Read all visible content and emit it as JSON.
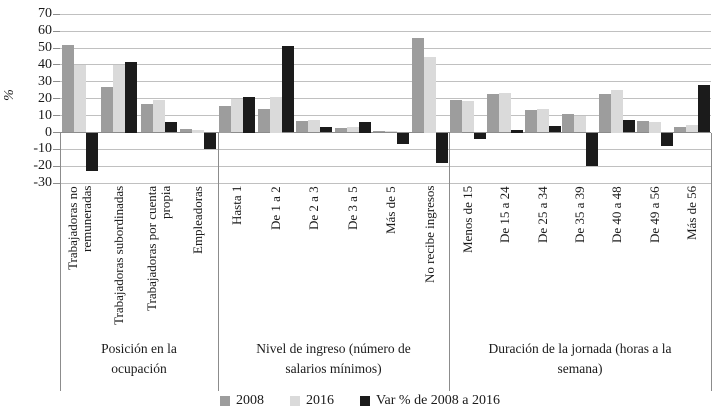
{
  "chart_data": {
    "type": "bar",
    "title": "",
    "ylabel": "%",
    "ylim": [
      -30,
      70
    ],
    "y_ticks": [
      70,
      60,
      50,
      40,
      30,
      20,
      10,
      0,
      -10,
      -20,
      -30
    ],
    "grid": "horizontal",
    "legend_position": "bottom",
    "series_names": [
      "2008",
      "2016",
      "Var % de 2008 a 2016"
    ],
    "series_colors": [
      "#9d9d9d",
      "#dadada",
      "#1b1b1b"
    ],
    "axis_color": "#8c8c8c",
    "gridline_color": "#c0c0c0",
    "legend": [
      "2008",
      "2016",
      "Var % de 2008 a 2016"
    ],
    "groups": [
      {
        "title": "Posición en la ocupación",
        "categories": [
          "Trabajadoras no remuneradas",
          "Trabajadoras subordinadas",
          "Trabajadoras por cuenta propia",
          "Empleadoras"
        ],
        "series": [
          {
            "name": "2008",
            "values": [
              52,
              27,
              17,
              2
            ]
          },
          {
            "name": "2016",
            "values": [
              40,
              40,
              19,
              1.5
            ]
          },
          {
            "name": "Var % de 2008 a 2016",
            "values": [
              -23,
              42,
              6,
              -10
            ]
          }
        ]
      },
      {
        "title": "Nivel de ingreso (número de salarios mínimos)",
        "categories": [
          "Hasta 1",
          "De 1 a 2",
          "De 2 a 3",
          "De 3 a 5",
          "Más de 5",
          "No recibe ingresos"
        ],
        "series": [
          {
            "name": "2008",
            "values": [
              16,
              14,
              7,
              2.5,
              1,
              56
            ]
          },
          {
            "name": "2016",
            "values": [
              20,
              21,
              7.5,
              3,
              1,
              45
            ]
          },
          {
            "name": "Var % de 2008 a 2016",
            "values": [
              21,
              51,
              3,
              6.5,
              -7,
              -18
            ]
          }
        ]
      },
      {
        "title": "Duración de la jornada (horas a la semana)",
        "categories": [
          "Menos de 15",
          "De 15 a 24",
          "De 25 a 34",
          "De 35 a 39",
          "De 40 a 48",
          "De 49 a 56",
          "Más de 56"
        ],
        "series": [
          {
            "name": "2008",
            "values": [
              19.5,
              23,
              13.5,
              11,
              23,
              7,
              3.5
            ]
          },
          {
            "name": "2016",
            "values": [
              18.5,
              23.5,
              14,
              9.5,
              25,
              6.5,
              4.5
            ]
          },
          {
            "name": "Var % de 2008 a 2016",
            "values": [
              -4,
              1.5,
              4,
              -20,
              7.5,
              -8,
              28
            ]
          }
        ]
      }
    ]
  }
}
